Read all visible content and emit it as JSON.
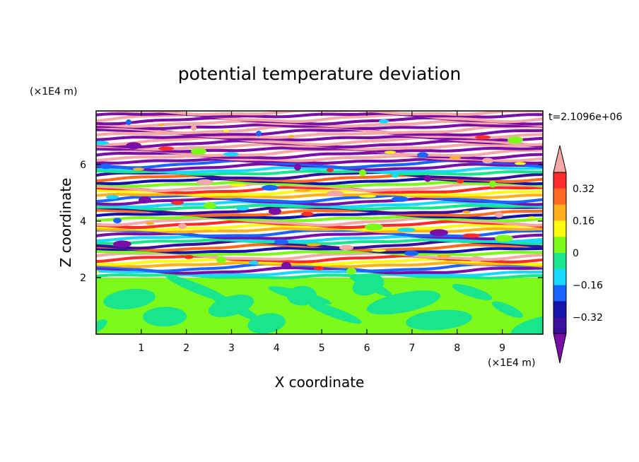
{
  "chart_data": {
    "type": "heatmap",
    "title": "potential temperature deviation",
    "xlabel": "X coordinate",
    "ylabel": "Z coordinate",
    "x_unit": "(×1E4 m)",
    "y_unit": "(×1E4 m)",
    "time_label": "t=2.1096e+06",
    "xlim": [
      0,
      9.9
    ],
    "ylim": [
      0,
      7.9
    ],
    "x_ticks": [
      1,
      2,
      3,
      4,
      5,
      6,
      7,
      8,
      9
    ],
    "y_ticks": [
      2,
      4,
      6
    ],
    "x_tick_labels": [
      "1",
      "2",
      "3",
      "4",
      "5",
      "6",
      "7",
      "8",
      "9"
    ],
    "y_tick_labels": [
      "2",
      "4",
      "6"
    ],
    "colorbar": {
      "levels": [
        -0.4,
        -0.32,
        -0.24,
        -0.16,
        -0.08,
        0,
        0.08,
        0.16,
        0.24,
        0.32,
        0.4
      ],
      "labeled_levels": [
        0.32,
        0.16,
        0,
        -0.16,
        -0.32
      ],
      "labels": [
        "0.32",
        "0.16",
        "0",
        "−0.16",
        "−0.32"
      ],
      "colors": [
        "#7a0fa8",
        "#3a0f9c",
        "#1414aa",
        "#1a64ff",
        "#19d8ff",
        "#19e68c",
        "#7dfa19",
        "#fdfb11",
        "#ffb01a",
        "#ff6a20",
        "#ff2a2a",
        "#f5a8a8"
      ],
      "extend": "both"
    },
    "field_description": "Lower layer (z < 2) shows mostly neutral values (greens); upper layers (z > 2) show banded, wavy positive/negative deviations, with strongly negative (purple) and strongly positive (pink) alternating bands near the top."
  }
}
